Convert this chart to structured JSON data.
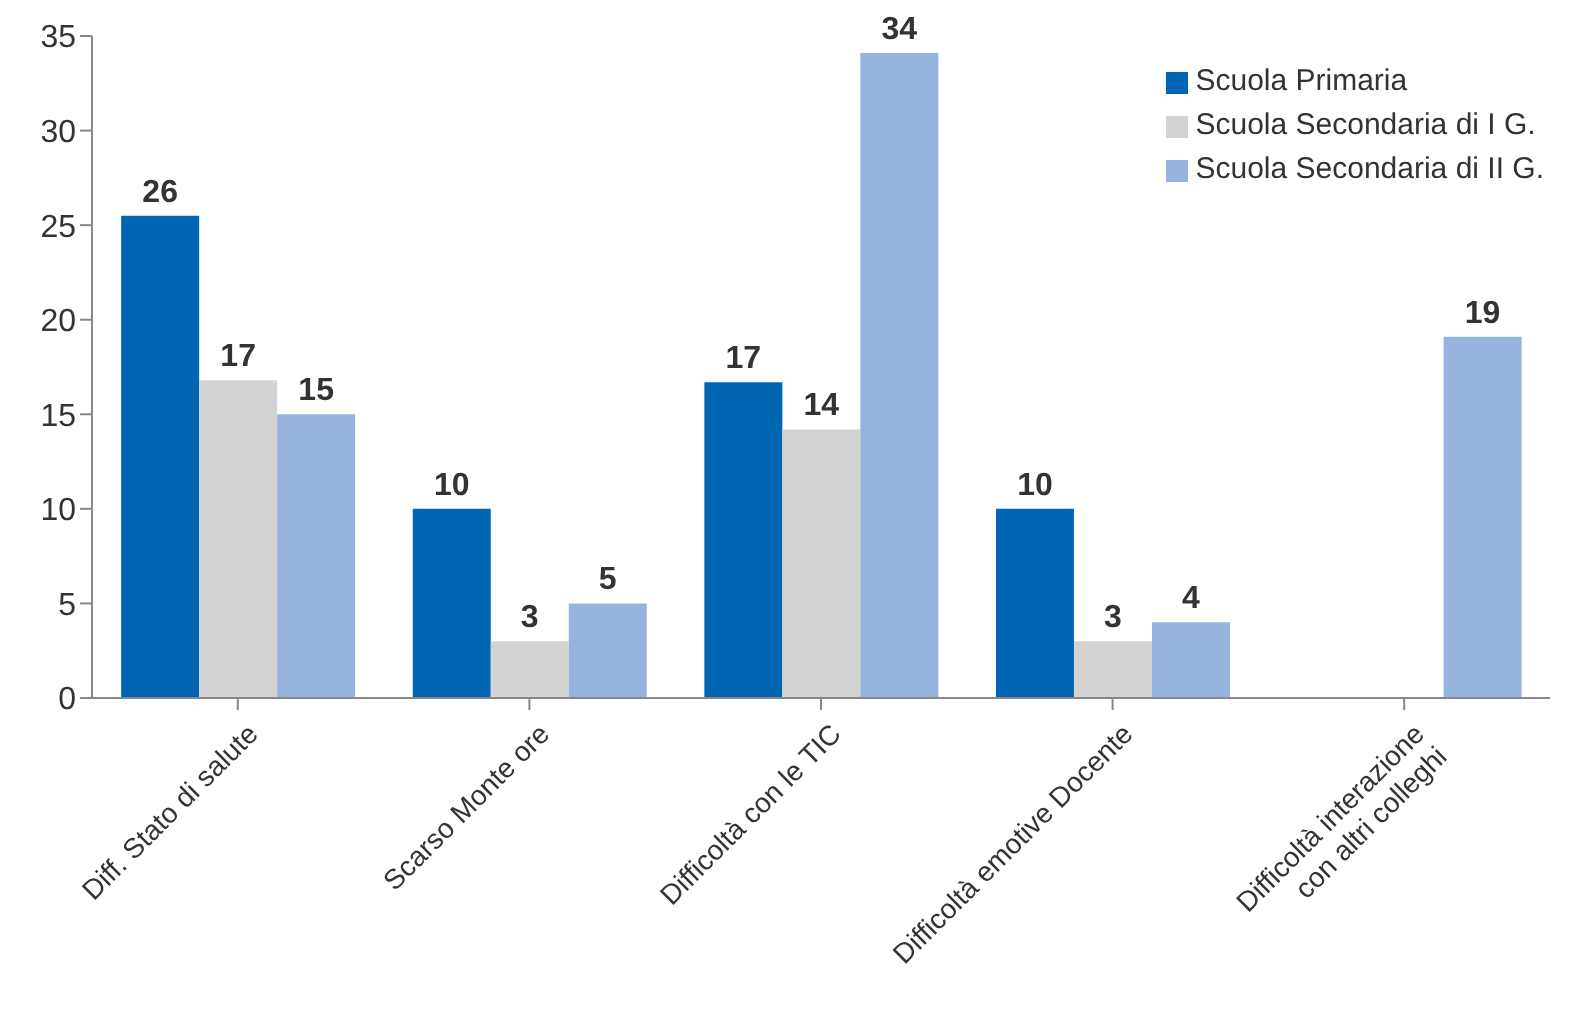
{
  "chart_data": {
    "type": "bar",
    "categories": [
      "Diff. Stato di salute",
      "Scarso Monte ore",
      "Difficoltà con le TIC",
      "Difficoltà emotive Docente",
      "Difficoltà interazione\ncon altri colleghi"
    ],
    "series": [
      {
        "name": "Scuola Primaria",
        "color": "#0066b3",
        "values": [
          25.5,
          10,
          16.7,
          10,
          null
        ],
        "value_labels": [
          "26",
          "10",
          "17",
          "10",
          null
        ]
      },
      {
        "name": "Scuola Secondaria di I G.",
        "color": "#d3d3d3",
        "values": [
          16.8,
          3,
          14.2,
          3,
          null
        ],
        "value_labels": [
          "17",
          "3",
          "14",
          "3",
          null
        ]
      },
      {
        "name": "Scuola Secondaria di II G.",
        "color": "#95b3dc",
        "values": [
          15,
          5,
          34.1,
          4,
          19.1
        ],
        "value_labels": [
          "15",
          "5",
          "34",
          "4",
          "19"
        ]
      }
    ],
    "ylim": [
      0,
      35
    ],
    "yticks": [
      0,
      5,
      10,
      15,
      20,
      25,
      30,
      35
    ],
    "grid": false,
    "legend": "top right"
  }
}
